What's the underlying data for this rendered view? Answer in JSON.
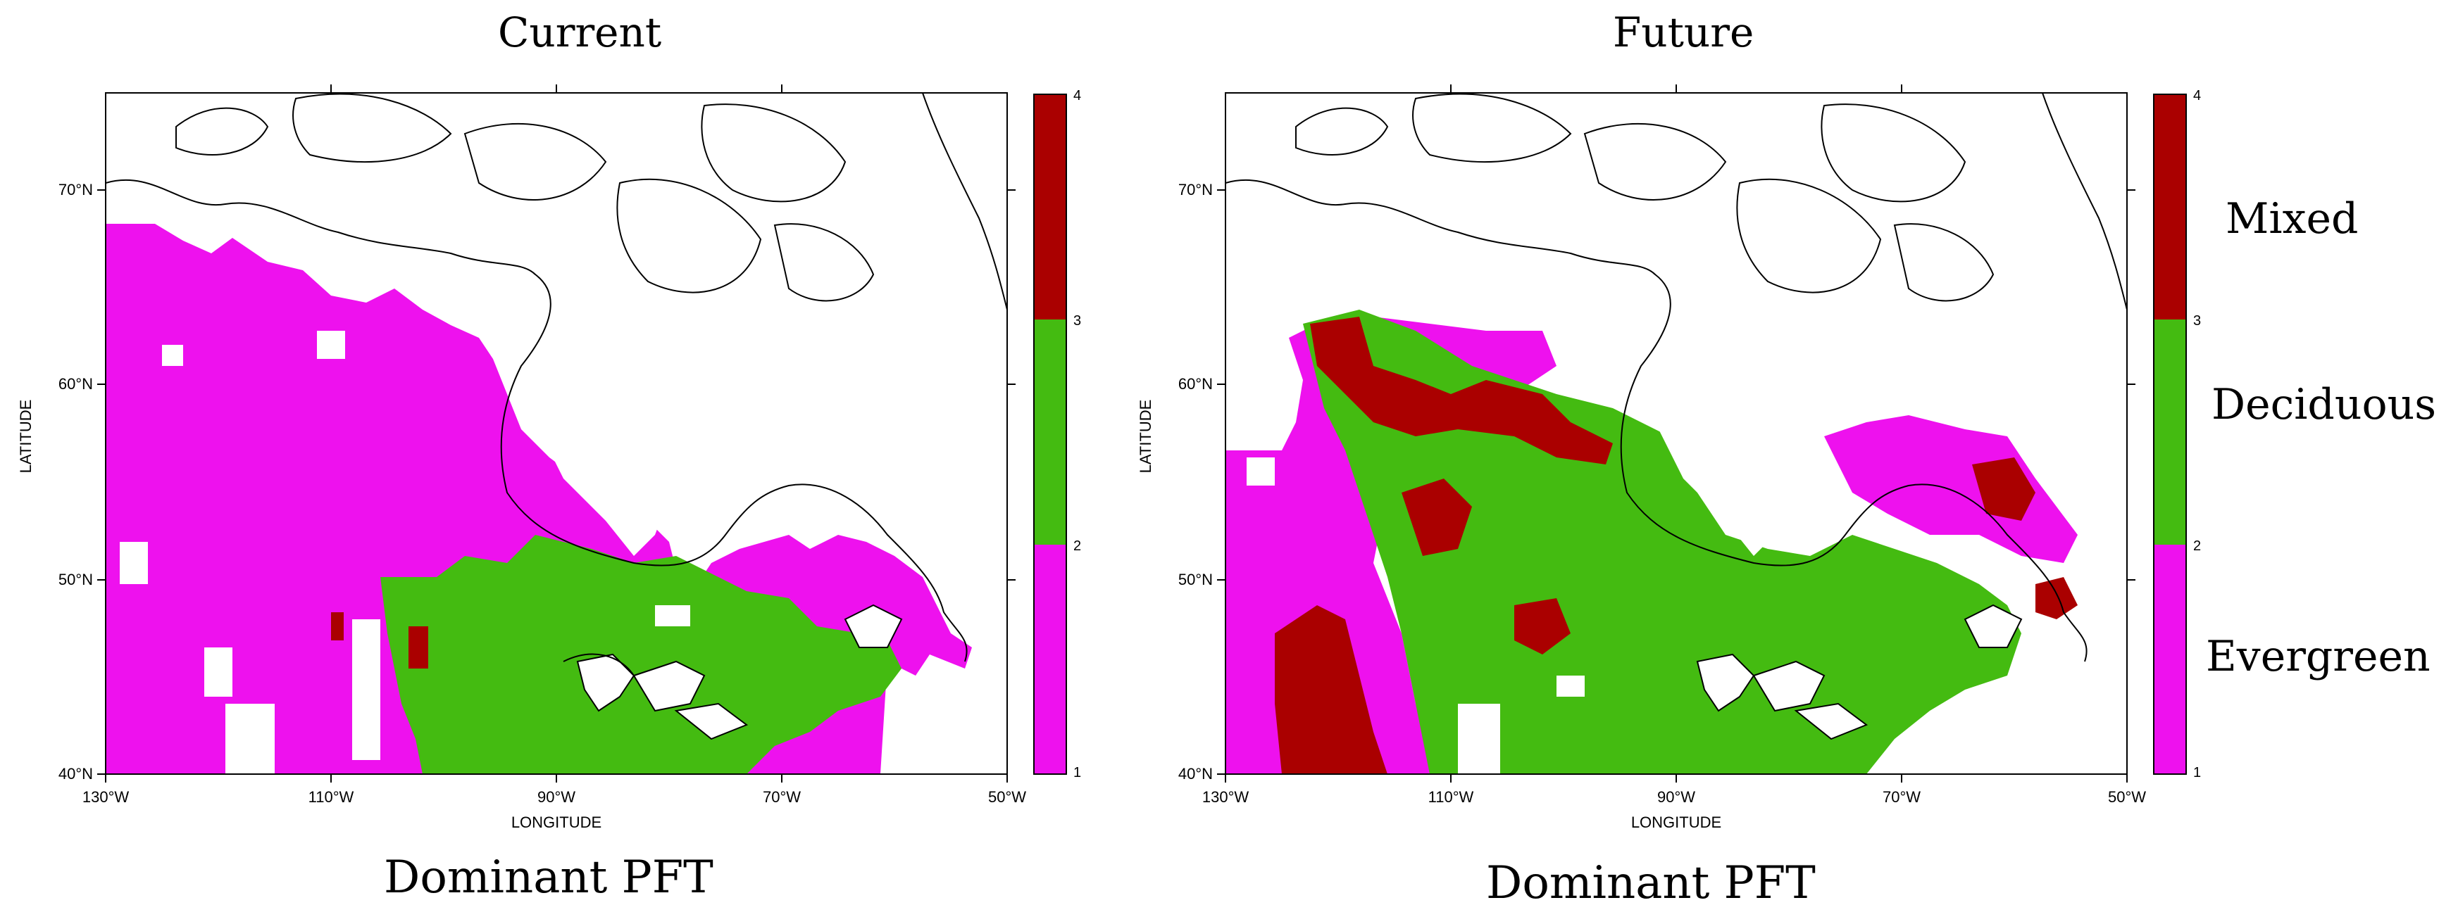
{
  "panels": [
    {
      "title": "Current",
      "caption": "Dominant PFT",
      "xlabel": "LONGITUDE",
      "ylabel": "LATITUDE",
      "lon_ticks": [
        "130°W",
        "110°W",
        "90°W",
        "70°W",
        "50°W"
      ],
      "lat_ticks": [
        "40°N",
        "50°N",
        "60°N",
        "70°N"
      ],
      "colorbar_ticks": [
        "1",
        "2",
        "3",
        "4"
      ]
    },
    {
      "title": "Future",
      "caption": "Dominant PFT",
      "xlabel": "LONGITUDE",
      "ylabel": "LATITUDE",
      "lon_ticks": [
        "130°W",
        "110°W",
        "90°W",
        "70°W",
        "50°W"
      ],
      "lat_ticks": [
        "40°N",
        "50°N",
        "60°N",
        "70°N"
      ],
      "colorbar_ticks": [
        "1",
        "2",
        "3",
        "4"
      ]
    }
  ],
  "legend": {
    "mixed": "Mixed",
    "deciduous": "Deciduous",
    "evergreen": "Evergreen"
  },
  "colors": {
    "evergreen": "#ee11ee",
    "deciduous": "#44bb11",
    "mixed": "#aa0000",
    "coast": "#000000"
  }
}
